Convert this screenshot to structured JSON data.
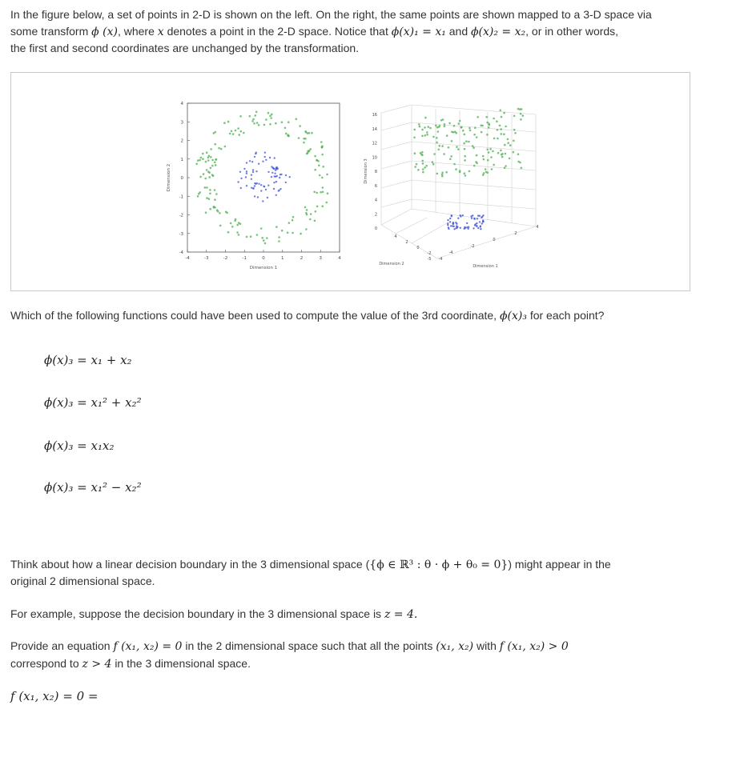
{
  "intro": {
    "line1": "In the figure below, a set of points in 2-D is shown on the left. On the right, the same points are shown mapped to a 3-D space via",
    "line2_a": "some transform",
    "line2_b": "ϕ (x)",
    "line2_c": ", where",
    "line2_d": "x",
    "line2_e": "denotes a point in the 2-D space. Notice that",
    "line2_f": "ϕ(x)₁ = x₁",
    "line2_g": "and",
    "line2_h": "ϕ(x)₂ = x₂",
    "line2_i": ", or in other words,",
    "line3": "the first and second coordinates are unchanged by the transformation."
  },
  "figure": {
    "left_plot": {
      "xlabel": "Dimension 1",
      "ylabel": "Dimension 2",
      "xticks": [
        "-4",
        "-3",
        "-2",
        "-1",
        "0",
        "1",
        "2",
        "3",
        "4"
      ],
      "yticks": [
        "4",
        "3",
        "2",
        "1",
        "0",
        "-1",
        "-2",
        "-3",
        "-4"
      ]
    },
    "right_plot": {
      "xlabel": "Dimension 1",
      "ylabel": "Dimension 2",
      "zlabel": "Dimension 3",
      "zticks": [
        "16",
        "14",
        "12",
        "10",
        "8",
        "6",
        "4",
        "2",
        "0"
      ],
      "yticks": [
        "4",
        "2",
        "0",
        "-2",
        "-4"
      ],
      "xticks": [
        "-5",
        "-4",
        "-2",
        "0",
        "2",
        "4"
      ]
    },
    "colors": {
      "outer": "#4caf50",
      "inner": "#3f51d8"
    }
  },
  "question": {
    "text_a": "Which of the following functions could have been used to compute the value of the 3rd coordinate,",
    "text_b": "ϕ(x)₃",
    "text_c": "for each point?"
  },
  "options": [
    {
      "label": "ϕ(x)₃ = x₁ + x₂"
    },
    {
      "label": "ϕ(x)₃ = x₁² + x₂²"
    },
    {
      "label": "ϕ(x)₃ = x₁x₂"
    },
    {
      "label": "ϕ(x)₃ = x₁² − x₂²"
    }
  ],
  "think": {
    "line1_a": "Think about how a linear decision boundary in the 3 dimensional space (",
    "line1_b": "{ϕ ∈ ℝ³ : θ · ϕ + θ₀ = 0}",
    "line1_c": ") might appear in the",
    "line2": "original 2 dimensional space."
  },
  "example": {
    "a": "For example, suppose the decision boundary in the 3 dimensional space is",
    "b": "z = 4."
  },
  "provide": {
    "a": "Provide an equation",
    "b": "f (x₁, x₂) = 0",
    "c": "in the 2 dimensional space such that all the points",
    "d": "(x₁, x₂)",
    "e": "with",
    "f": "f (x₁, x₂) > 0",
    "line2_a": "correspond to",
    "line2_b": "z > 4",
    "line2_c": "in the 3 dimensional space."
  },
  "answer_prompt": "f (x₁, x₂) = 0 ="
}
